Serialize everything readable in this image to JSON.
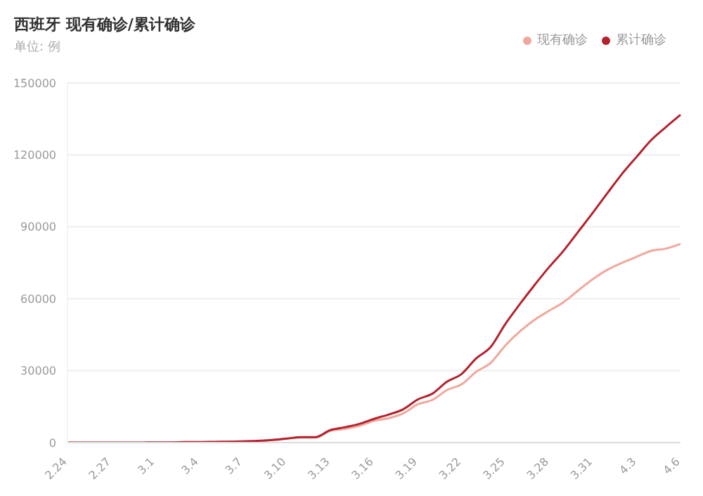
{
  "chart_data": {
    "type": "line",
    "title": "西班牙 现有确诊/累计确诊",
    "subtitle": "单位: 例",
    "categories": [
      "2.24",
      null,
      null,
      "2.27",
      null,
      null,
      "3.1",
      null,
      null,
      "3.4",
      null,
      null,
      "3.7",
      null,
      null,
      "3.10",
      null,
      null,
      "3.13",
      null,
      null,
      "3.16",
      null,
      null,
      "3.19",
      null,
      null,
      "3.22",
      null,
      null,
      "3.25",
      null,
      null,
      "3.28",
      null,
      null,
      "3.31",
      null,
      null,
      "4.3",
      null,
      null,
      "4.6"
    ],
    "series": [
      {
        "name": "现有确诊",
        "color": "#f0a89c",
        "values": [
          0,
          0,
          0,
          0,
          0,
          0,
          100,
          100,
          200,
          200,
          200,
          400,
          500,
          600,
          1000,
          1600,
          2100,
          2100,
          4900,
          5700,
          7000,
          9100,
          10200,
          12200,
          16000,
          17800,
          21900,
          24300,
          29500,
          33300,
          40500,
          46400,
          51200,
          55000,
          58600,
          63500,
          68200,
          72100,
          75000,
          77500,
          80000,
          80900,
          82900
        ]
      },
      {
        "name": "累计确诊",
        "color": "#b3222d",
        "values": [
          0,
          0,
          0,
          0,
          0,
          0,
          100,
          100,
          200,
          200,
          300,
          400,
          500,
          700,
          1100,
          1700,
          2300,
          2300,
          5200,
          6400,
          7800,
          9900,
          11700,
          13900,
          18000,
          20400,
          25400,
          28600,
          35100,
          39900,
          49500,
          57800,
          65700,
          73200,
          80100,
          88000,
          95900,
          104100,
          112100,
          119200,
          126200,
          131600,
          136700
        ]
      }
    ],
    "ylim": [
      0,
      150000
    ],
    "yticks": [
      0,
      30000,
      60000,
      90000,
      120000,
      150000
    ],
    "grid": "y",
    "legend": "top right",
    "marker": "none",
    "line_style": "solid"
  }
}
